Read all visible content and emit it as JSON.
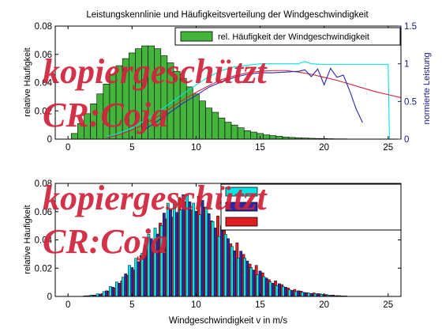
{
  "chart_data": [
    {
      "type": "bar",
      "title": "Leistungskennlinie und Häufigkeitsverteilung der Windgeschwindigkeit",
      "xlabel": "",
      "ylabel": "relative Häufigkeit",
      "y2label": "normierte Leistung",
      "xlim": [
        -1,
        26
      ],
      "ylim": [
        0,
        0.08
      ],
      "y2lim": [
        0,
        1.5
      ],
      "xticks": [
        "0",
        "5",
        "10",
        "15",
        "20",
        "25"
      ],
      "yticks": [
        "0",
        "0.02",
        "0.04",
        "0.06",
        "0.08"
      ],
      "y2ticks": [
        "0",
        "0.5",
        "1",
        "1.5"
      ],
      "legend": {
        "position": "top-right",
        "entries": [
          "rel. Häufigkeit der Windgeschwindigkeit"
        ]
      },
      "bar_color": "#44b43c",
      "bar_width": 0.5,
      "bars": {
        "x": [
          0.5,
          1,
          1.5,
          2,
          2.5,
          3,
          3.5,
          4,
          4.5,
          5,
          5.5,
          6,
          6.5,
          7,
          7.5,
          8,
          8.5,
          9,
          9.5,
          10,
          10.5,
          11,
          11.5,
          12,
          12.5,
          13,
          13.5,
          14,
          14.5,
          15,
          15.5,
          16,
          16.5,
          17,
          17.5,
          18,
          18.5,
          19,
          19.5,
          20,
          20.5,
          21,
          21.5,
          22,
          22.5,
          23,
          23.5,
          24,
          24.5,
          25
        ],
        "values": [
          0.004,
          0.011,
          0.018,
          0.025,
          0.032,
          0.039,
          0.046,
          0.052,
          0.057,
          0.061,
          0.064,
          0.066,
          0.066,
          0.064,
          0.059,
          0.054,
          0.048,
          0.043,
          0.037,
          0.032,
          0.027,
          0.022,
          0.019,
          0.015,
          0.012,
          0.01,
          0.008,
          0.006,
          0.005,
          0.004,
          0.003,
          0.0025,
          0.002,
          0.0015,
          0.0012,
          0.001,
          0.0008,
          0.0006,
          0.0005,
          0.0004,
          0.0003,
          0.0002,
          0.0002,
          0.0001,
          0.0001,
          0.0001,
          0,
          0,
          0,
          0
        ]
      },
      "power_series": [
        {
          "name": "",
          "color": "#00e5e5",
          "x": [
            3,
            4,
            5,
            6,
            7,
            8,
            9,
            10,
            11,
            12,
            13,
            14,
            15,
            16,
            17,
            18,
            18.5,
            19,
            20,
            21,
            22,
            23,
            24,
            25,
            25.1,
            25.2,
            26
          ],
          "values": [
            0.03,
            0.08,
            0.15,
            0.25,
            0.36,
            0.48,
            0.6,
            0.72,
            0.83,
            0.91,
            0.96,
            0.98,
            1.0,
            1.0,
            1.0,
            1.0,
            1.03,
            1.0,
            0.99,
            0.99,
            0.99,
            0.99,
            0.99,
            0.99,
            0.0,
            0.0,
            0.0
          ]
        },
        {
          "name": "",
          "color": "#d8203a",
          "x": [
            3,
            4,
            5,
            6,
            7,
            8,
            9,
            10,
            11,
            12,
            13,
            14,
            15,
            16,
            17,
            18,
            19,
            20,
            21,
            22,
            23,
            24,
            25,
            26
          ],
          "values": [
            0.02,
            0.06,
            0.12,
            0.2,
            0.3,
            0.41,
            0.52,
            0.62,
            0.71,
            0.79,
            0.84,
            0.88,
            0.9,
            0.91,
            0.91,
            0.89,
            0.86,
            0.82,
            0.78,
            0.73,
            0.68,
            0.63,
            0.59,
            0.55
          ]
        },
        {
          "name": "",
          "color": "#2a2aa8",
          "x": [
            6,
            7,
            8,
            9,
            10,
            11,
            12,
            13,
            14,
            15,
            16,
            17,
            18,
            18.5,
            19,
            19.5,
            20,
            20.5,
            21,
            21.5,
            22,
            22.5,
            23
          ],
          "values": [
            0.13,
            0.24,
            0.36,
            0.48,
            0.58,
            0.69,
            0.76,
            0.82,
            0.86,
            0.88,
            0.88,
            0.89,
            0.9,
            0.92,
            0.83,
            0.93,
            0.72,
            0.94,
            0.82,
            0.85,
            0.64,
            0.4,
            0.22
          ]
        }
      ]
    },
    {
      "type": "bar",
      "title": "",
      "xlabel": "Windgeschwindigkeit v in m/s",
      "ylabel": "relative Häufigkeit",
      "xlim": [
        -1,
        26
      ],
      "ylim": [
        0,
        0.08
      ],
      "xticks": [
        "0",
        "5",
        "10",
        "15",
        "20",
        "25"
      ],
      "yticks": [
        "0",
        "0.02",
        "0.04",
        "0.06",
        "0.08"
      ],
      "legend": {
        "position": "top-right",
        "colors": [
          "#00e5e5",
          "#2a2aa8",
          "#e02020"
        ]
      },
      "series_colors": [
        "#00e5e5",
        "#2a2aa8",
        "#e02020"
      ],
      "group_width": 0.6,
      "categories": [
        1.5,
        2,
        2.5,
        3,
        3.5,
        4,
        4.5,
        5,
        5.5,
        6,
        6.5,
        7,
        7.5,
        8,
        8.5,
        9,
        9.5,
        10,
        10.5,
        11,
        11.5,
        12,
        12.5,
        13,
        13.5,
        14,
        14.5,
        15,
        15.5,
        16,
        16.5,
        17,
        17.5,
        18,
        18.5,
        19,
        19.5,
        20,
        20.5,
        21,
        21.5
      ],
      "envelope": [
        0.0005,
        0.001,
        0.002,
        0.004,
        0.007,
        0.011,
        0.016,
        0.022,
        0.029,
        0.036,
        0.044,
        0.052,
        0.059,
        0.066,
        0.07,
        0.072,
        0.072,
        0.071,
        0.068,
        0.063,
        0.057,
        0.05,
        0.044,
        0.038,
        0.032,
        0.027,
        0.022,
        0.018,
        0.014,
        0.011,
        0.009,
        0.007,
        0.005,
        0.004,
        0.003,
        0.0025,
        0.002,
        0.0015,
        0.001,
        0.0006,
        0.0004
      ],
      "series_factors": [
        0.85,
        1.0,
        0.93
      ]
    }
  ],
  "watermark": {
    "line1": "kopiergeschützt",
    "line2": "CR:Coja"
  }
}
